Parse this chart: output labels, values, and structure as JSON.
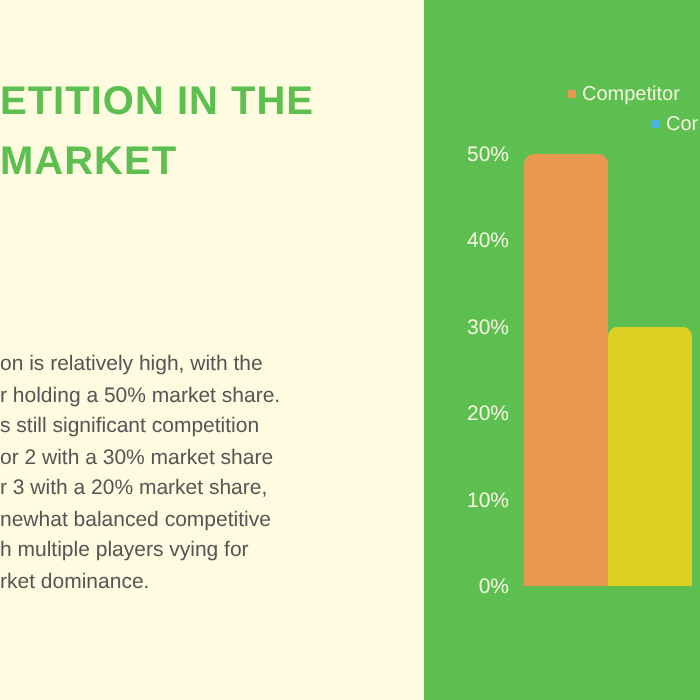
{
  "chart_data": {
    "type": "bar",
    "title": "ETITION IN THE MARKET",
    "categories": [
      null,
      null
    ],
    "values": [
      50,
      30
    ],
    "colors": [
      "#e8994f",
      "#dfcf25"
    ],
    "ylim": [
      0,
      50
    ],
    "yticks": [
      {
        "value": 0,
        "label": "0%"
      },
      {
        "value": 10,
        "label": "10%"
      },
      {
        "value": 20,
        "label": "20%"
      },
      {
        "value": 30,
        "label": "30%"
      },
      {
        "value": 40,
        "label": "40%"
      },
      {
        "value": 50,
        "label": "50%"
      }
    ],
    "annotations": [
      "on is relatively high, with the\nr holding a 50% market share.\ns still significant competition\nor 2 with a 30% market share\nr 3 with a 20% market share,\nnewhat balanced competitive\nh multiple players vying for\nrket dominance.",
      "Competitor",
      "Cor"
    ]
  }
}
